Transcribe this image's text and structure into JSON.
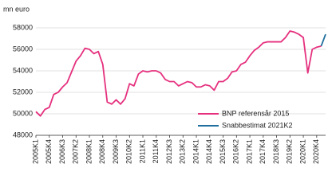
{
  "chart_data": {
    "type": "line",
    "y_label": "mn euro",
    "categories": [
      "2005K1",
      null,
      null,
      "2005K4",
      null,
      null,
      "2006K3",
      null,
      null,
      "2007K2",
      null,
      null,
      "2008K1",
      null,
      null,
      "2008K4",
      null,
      null,
      "2009K3",
      null,
      null,
      "2010K2",
      null,
      null,
      "2011K1",
      null,
      null,
      "2011K4",
      null,
      null,
      "2012K3",
      null,
      null,
      "2013K2",
      null,
      null,
      "2014K1",
      null,
      null,
      "2014K4",
      null,
      null,
      "2015K3",
      null,
      null,
      "2016K2",
      null,
      null,
      "2017K1",
      null,
      null,
      "2017K4",
      null,
      null,
      "2018K3",
      null,
      null,
      "2019K2",
      null,
      null,
      "2020K1",
      null,
      null,
      "2020K4",
      null,
      null
    ],
    "series": [
      {
        "name": "BNP referensår 2015",
        "color": "#e5307e",
        "values": [
          50200,
          49800,
          50400,
          50600,
          51800,
          52000,
          52500,
          52900,
          53900,
          54900,
          55400,
          56100,
          56000,
          55600,
          55800,
          54600,
          51100,
          50900,
          51300,
          50900,
          51400,
          52800,
          52600,
          53700,
          54000,
          53900,
          54000,
          54000,
          53800,
          53200,
          53000,
          53000,
          52600,
          52800,
          53000,
          52900,
          52500,
          52500,
          52700,
          52600,
          52200,
          53000,
          53000,
          53300,
          53900,
          54000,
          54600,
          54800,
          55400,
          55900,
          56200,
          56600,
          56700,
          56700,
          56700,
          56700,
          57100,
          57700,
          57600,
          57400,
          57100,
          53800,
          56000,
          56200,
          56300,
          null
        ]
      },
      {
        "name": "Snabbestimat 2021K2",
        "color": "#1f6e9c",
        "values": [
          null,
          null,
          null,
          null,
          null,
          null,
          null,
          null,
          null,
          null,
          null,
          null,
          null,
          null,
          null,
          null,
          null,
          null,
          null,
          null,
          null,
          null,
          null,
          null,
          null,
          null,
          null,
          null,
          null,
          null,
          null,
          null,
          null,
          null,
          null,
          null,
          null,
          null,
          null,
          null,
          null,
          null,
          null,
          null,
          null,
          null,
          null,
          null,
          null,
          null,
          null,
          null,
          null,
          null,
          null,
          null,
          null,
          null,
          null,
          null,
          null,
          null,
          null,
          null,
          56300,
          57400
        ]
      }
    ],
    "ylim": [
      48000,
      58000
    ],
    "yticks": [
      48000,
      50000,
      52000,
      54000,
      56000,
      58000
    ],
    "grid": true,
    "legend": "lower right"
  }
}
